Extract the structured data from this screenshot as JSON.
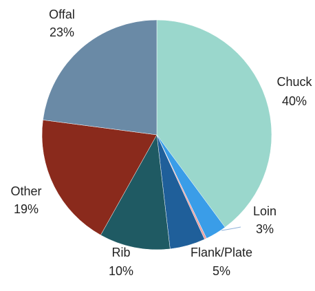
{
  "chart_data": {
    "type": "pie",
    "start_angle_deg": 0,
    "direction": "clockwise",
    "slices": [
      {
        "name": "Chuck",
        "value": 40,
        "label": "Chuck",
        "pct_label": "40%",
        "color": "#9ad7cc"
      },
      {
        "name": "Loin",
        "value": 3,
        "label": "Loin",
        "pct_label": "3%",
        "color": "#3a9de8"
      },
      {
        "name": "Loin-accent",
        "value": 0.3,
        "label": "",
        "pct_label": "",
        "color": "#e8a0a0"
      },
      {
        "name": "Flank/Plate",
        "value": 5,
        "label": "Flank/Plate",
        "pct_label": "5%",
        "color": "#1f5f9a"
      },
      {
        "name": "Rib",
        "value": 10,
        "label": "Rib",
        "pct_label": "10%",
        "color": "#1f5a63"
      },
      {
        "name": "Other",
        "value": 19,
        "label": "Other",
        "pct_label": "19%",
        "color": "#8a2a1c"
      },
      {
        "name": "Offal",
        "value": 23,
        "label": "Offal",
        "pct_label": "23%",
        "color": "#6a8aa6"
      }
    ]
  }
}
